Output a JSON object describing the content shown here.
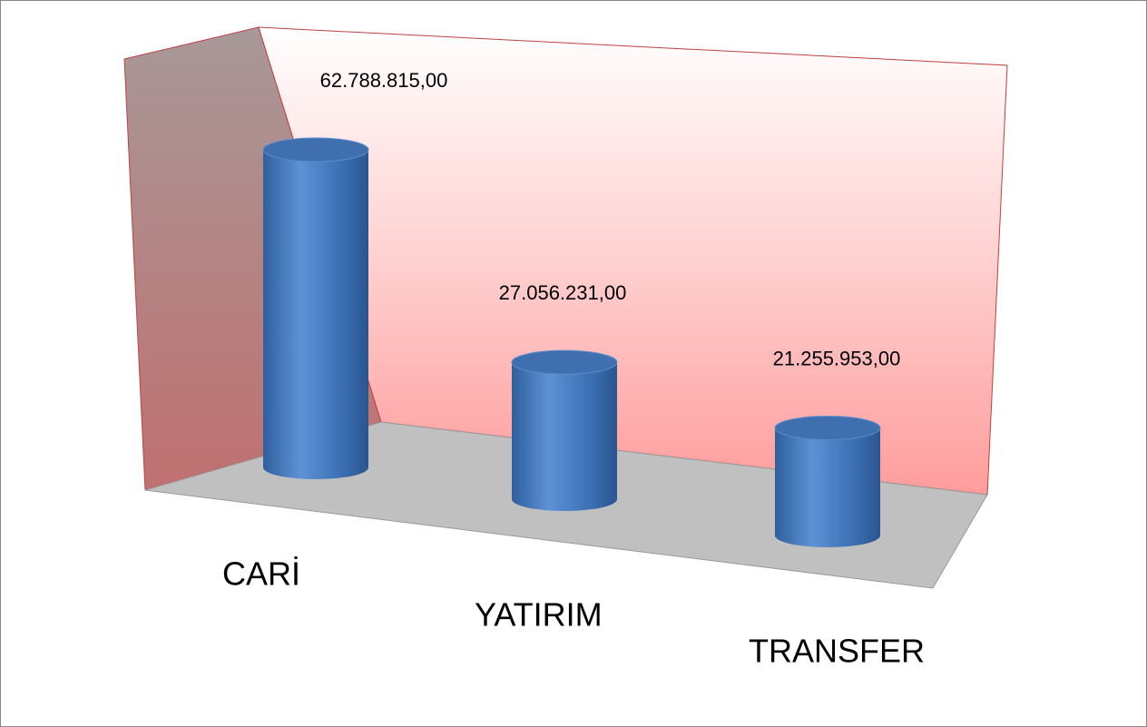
{
  "chart_data": {
    "type": "bar3d",
    "categories": [
      "CARİ",
      "YATIRIM",
      "TRANSFER"
    ],
    "values": [
      62788815,
      27056231,
      21255953
    ],
    "value_labels": [
      "62.788.815,00",
      "27.056.231,00",
      "21.255.953,00"
    ],
    "color": "#4a7ebb"
  }
}
